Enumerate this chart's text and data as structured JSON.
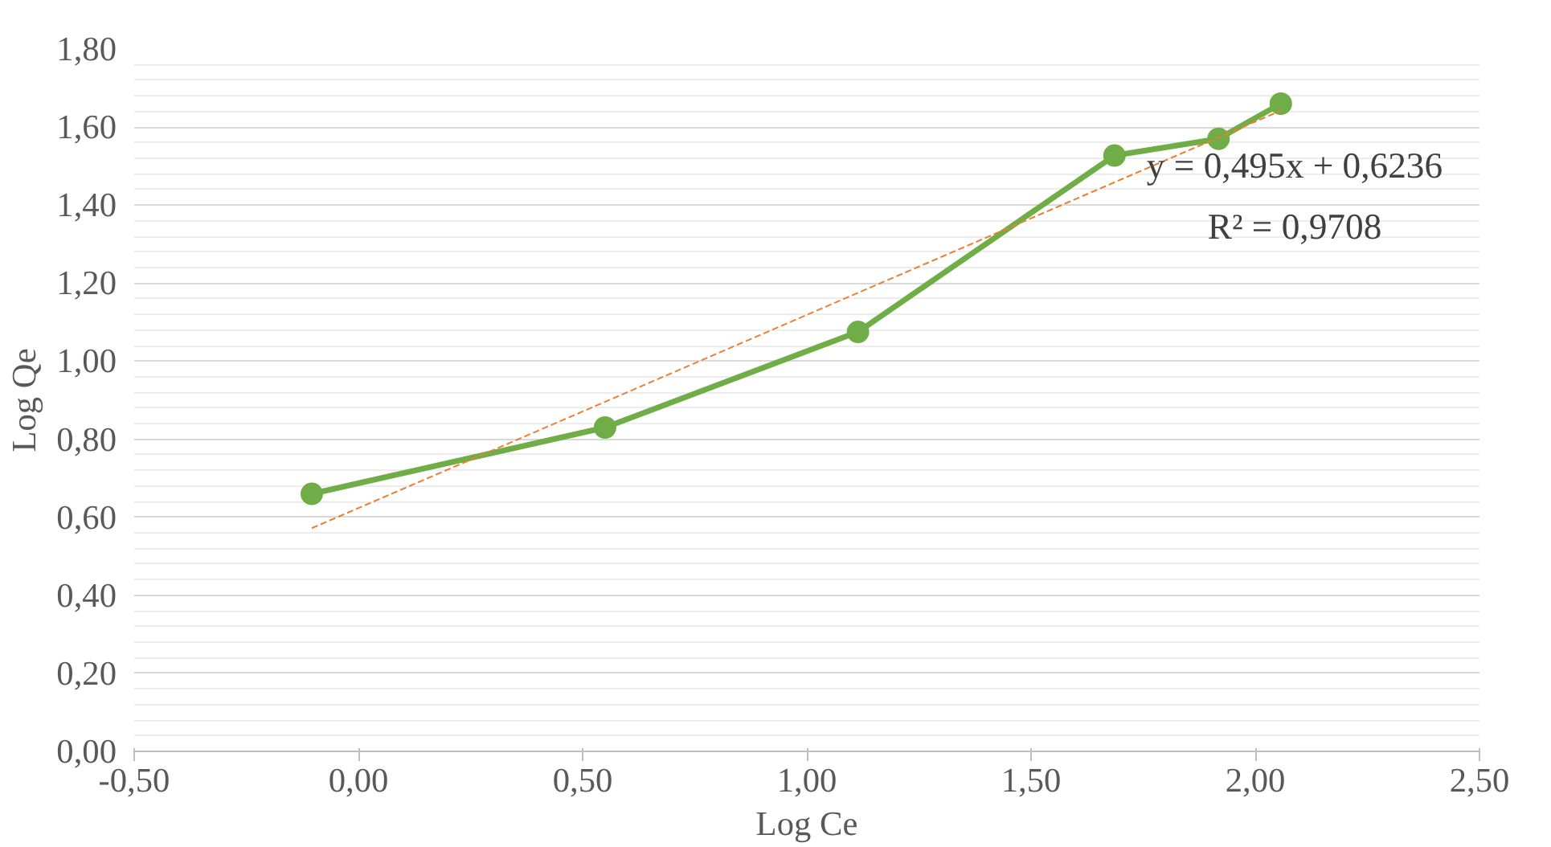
{
  "chart_data": {
    "type": "line",
    "xlabel": "Log Ce",
    "ylabel": "Log Qe",
    "series": [
      {
        "color": "#70ad47",
        "x": [
          -0.104,
          0.55,
          1.114,
          1.686,
          1.918,
          2.057
        ],
        "values": [
          0.66,
          0.83,
          1.075,
          1.527,
          1.57,
          1.66
        ],
        "marker": "circle",
        "line_style": "solid"
      },
      {
        "color": "#ed7d31",
        "x": [
          -0.104,
          2.057
        ],
        "values": [
          0.572,
          1.642
        ],
        "marker": "none",
        "line_style": "dashed"
      }
    ],
    "annotations": [
      "y = 0,495x + 0,6236",
      "R² = 0,9708"
    ],
    "xlim": [
      -0.5,
      2.5
    ],
    "ylim": [
      0,
      1.8
    ],
    "xticks": [
      {
        "value": -0.5,
        "label": "-0,50"
      },
      {
        "value": 0,
        "label": "0,00"
      },
      {
        "value": 0.5,
        "label": "0,50"
      },
      {
        "value": 1,
        "label": "1,00"
      },
      {
        "value": 1.5,
        "label": "1,50"
      },
      {
        "value": 2,
        "label": "2,00"
      },
      {
        "value": 2.5,
        "label": "2,50"
      }
    ],
    "yticks": [
      {
        "value": 0,
        "label": "0,00"
      },
      {
        "value": 0.2,
        "label": "0,20"
      },
      {
        "value": 0.4,
        "label": "0,40"
      },
      {
        "value": 0.6,
        "label": "0,60"
      },
      {
        "value": 0.8,
        "label": "0,80"
      },
      {
        "value": 1,
        "label": "1,00"
      },
      {
        "value": 1.2,
        "label": "1,20"
      },
      {
        "value": 1.4,
        "label": "1,40"
      },
      {
        "value": 1.6,
        "label": "1,60"
      },
      {
        "value": 1.8,
        "label": "1,80"
      }
    ],
    "grid": "y"
  }
}
